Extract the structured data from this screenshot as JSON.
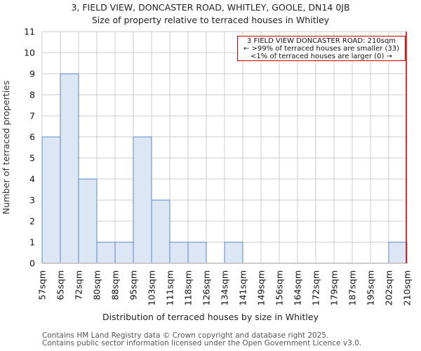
{
  "header": {
    "title": "3, FIELD VIEW, DONCASTER ROAD, WHITLEY, GOOLE, DN14 0JB",
    "subtitle": "Size of property relative to terraced houses in Whitley"
  },
  "annotation": {
    "line1": "3 FIELD VIEW DONCASTER ROAD: 210sqm",
    "line2": "← >99% of terraced houses are smaller (33)",
    "line3": "<1% of terraced houses are larger (0) →"
  },
  "footer": {
    "line1": "Contains HM Land Registry data © Crown copyright and database right 2025.",
    "line2": "Contains public sector information licensed under the Open Government Licence v3.0."
  },
  "colors": {
    "bar_fill": "#dce6f4",
    "bar_edge": "#5b87c5",
    "marker": "#cc0000",
    "grid": "#cccccc"
  },
  "chart_data": {
    "type": "bar",
    "title": "3, FIELD VIEW, DONCASTER ROAD, WHITLEY, GOOLE, DN14 0JB",
    "subtitle": "Size of property relative to terraced houses in Whitley",
    "xlabel": "Distribution of terraced houses by size in Whitley",
    "ylabel": "Number of terraced properties",
    "x_ticks": [
      "57sqm",
      "65sqm",
      "72sqm",
      "80sqm",
      "88sqm",
      "95sqm",
      "103sqm",
      "111sqm",
      "118sqm",
      "126sqm",
      "134sqm",
      "141sqm",
      "149sqm",
      "156sqm",
      "164sqm",
      "172sqm",
      "179sqm",
      "187sqm",
      "195sqm",
      "202sqm",
      "210sqm"
    ],
    "categories": [
      "57-65",
      "65-72",
      "72-80",
      "80-88",
      "88-95",
      "95-103",
      "103-111",
      "111-118",
      "118-126",
      "126-134",
      "134-141",
      "141-149",
      "149-156",
      "156-164",
      "164-172",
      "172-179",
      "179-187",
      "187-195",
      "195-202",
      "202-210"
    ],
    "values": [
      6,
      9,
      4,
      1,
      1,
      6,
      3,
      1,
      1,
      0,
      1,
      0,
      0,
      0,
      0,
      0,
      0,
      0,
      0,
      1
    ],
    "y_ticks": [
      0,
      1,
      2,
      3,
      4,
      5,
      6,
      7,
      8,
      9,
      10,
      11
    ],
    "ylim": [
      0,
      11
    ],
    "grid": true,
    "marker": {
      "value_sqm": 210,
      "label": "3 FIELD VIEW DONCASTER ROAD: 210sqm"
    }
  }
}
